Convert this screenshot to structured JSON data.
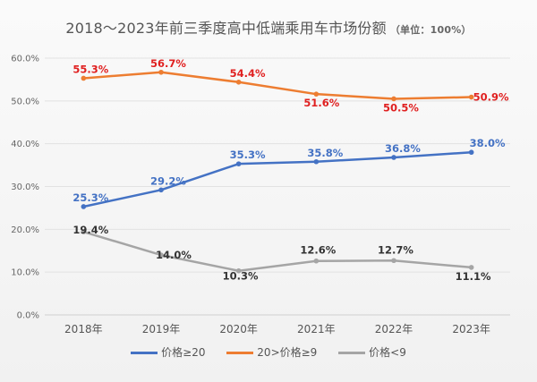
{
  "chart_data": {
    "type": "line",
    "title": "2018～2023年前三季度高中低端乘用车市场份额",
    "unit_note": "（单位：100%）",
    "categories": [
      "2018年",
      "2019年",
      "2020年",
      "2021年",
      "2022年",
      "2023年"
    ],
    "yticks": [
      "0.0%",
      "10.0%",
      "20.0%",
      "30.0%",
      "40.0%",
      "50.0%",
      "60.0%"
    ],
    "ylim": [
      0,
      60
    ],
    "grid": true,
    "legend_position": "bottom",
    "series": [
      {
        "name": "价格≥20",
        "color": "#4472c4",
        "values": [
          25.3,
          29.2,
          35.3,
          35.8,
          36.8,
          38.0
        ],
        "labels": [
          "25.3%",
          "29.2%",
          "35.3%",
          "35.8%",
          "36.8%",
          "38.0%"
        ]
      },
      {
        "name": "20>价格≥9",
        "color": "#ed7d31",
        "values": [
          55.3,
          56.7,
          54.4,
          51.6,
          50.5,
          50.9
        ],
        "labels": [
          "55.3%",
          "56.7%",
          "54.4%",
          "51.6%",
          "50.5%",
          "50.9%"
        ]
      },
      {
        "name": "价格<9",
        "color": "#a5a5a5",
        "values": [
          19.4,
          14.0,
          10.3,
          12.6,
          12.7,
          11.1
        ],
        "labels": [
          "19.4%",
          "14.0%",
          "10.3%",
          "12.6%",
          "12.7%",
          "11.1%"
        ]
      }
    ],
    "label_colors": [
      "#4472c4",
      "#e02020",
      "#333333"
    ]
  }
}
